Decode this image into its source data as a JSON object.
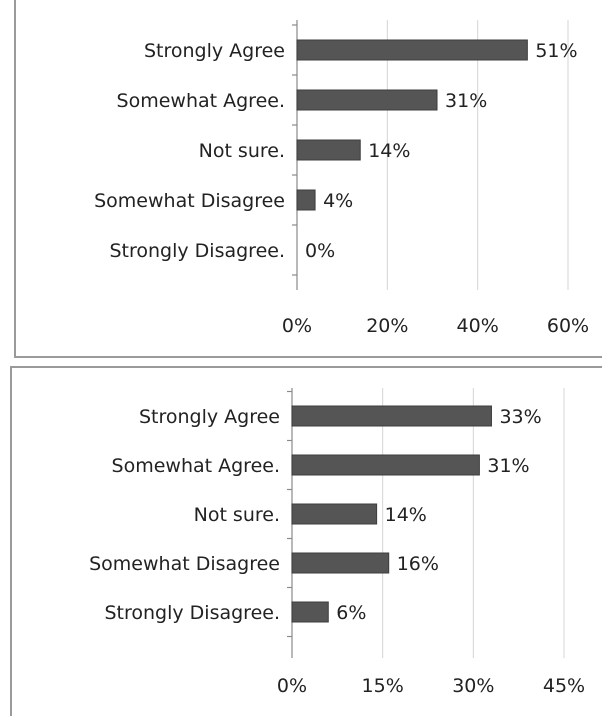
{
  "chart_data": [
    {
      "type": "bar",
      "orientation": "horizontal",
      "categories": [
        "Strongly Agree",
        "Somewhat Agree.",
        "Not sure.",
        "Somewhat Disagree",
        "Strongly Disagree."
      ],
      "values": [
        51,
        31,
        14,
        4,
        0
      ],
      "value_labels": [
        "51%",
        "31%",
        "14%",
        "4%",
        "0%"
      ],
      "xticks": [
        0,
        20,
        40,
        60
      ],
      "xtick_labels": [
        "0%",
        "20%",
        "40%",
        "60%"
      ],
      "xlim": [
        0,
        60
      ],
      "grid": "vertical",
      "bar_color": "#555555"
    },
    {
      "type": "bar",
      "orientation": "horizontal",
      "categories": [
        "Strongly Agree",
        "Somewhat Agree.",
        "Not sure.",
        "Somewhat Disagree",
        "Strongly Disagree."
      ],
      "values": [
        33,
        31,
        14,
        16,
        6
      ],
      "value_labels": [
        "33%",
        "31%",
        "14%",
        "16%",
        "6%"
      ],
      "xticks": [
        0,
        15,
        30,
        45
      ],
      "xtick_labels": [
        "0%",
        "15%",
        "30%",
        "45%"
      ],
      "xlim": [
        0,
        45
      ],
      "grid": "vertical",
      "bar_color": "#555555"
    }
  ]
}
